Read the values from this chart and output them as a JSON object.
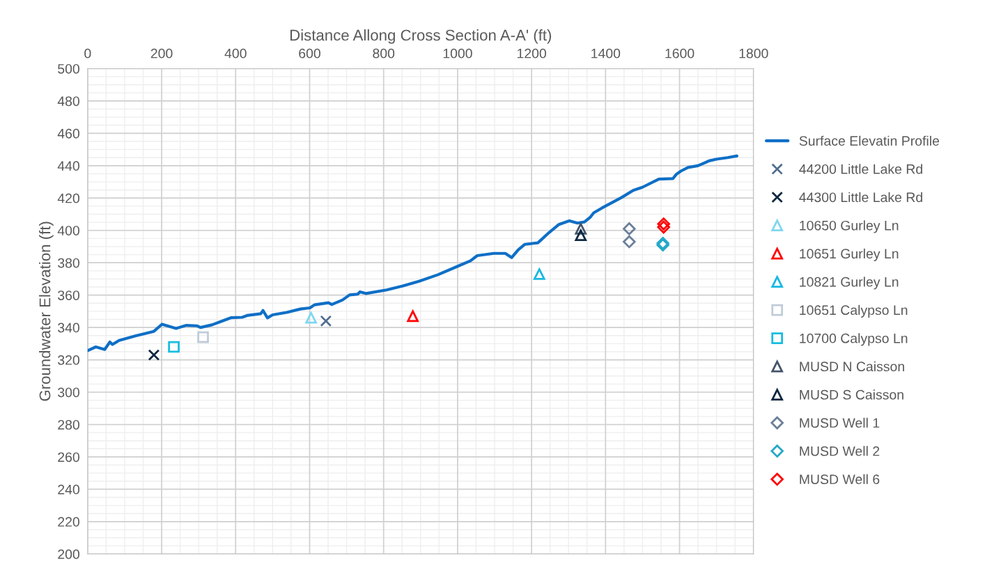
{
  "chart_data": {
    "type": "scatter",
    "xlabel": "Distance Allong Cross Section A-A' (ft)",
    "ylabel": "Groundwater Elevation (ft)",
    "xlim": [
      0,
      1800
    ],
    "xticks": [
      0,
      200,
      400,
      600,
      800,
      1000,
      1200,
      1400,
      1600,
      1800
    ],
    "ylim": [
      200,
      500
    ],
    "yticks": [
      200,
      220,
      240,
      260,
      280,
      300,
      320,
      340,
      360,
      380,
      400,
      420,
      440,
      460,
      480,
      500
    ],
    "grid": true,
    "legend": "right",
    "series": [
      {
        "name": "Surface Elevatin Profile",
        "type": "line",
        "color": "#0f6fc6",
        "marker": "none",
        "line_style": "solid",
        "x": [
          0,
          22,
          46,
          60,
          67,
          85,
          129,
          179,
          201,
          239,
          267,
          296,
          305,
          336,
          358,
          387,
          418,
          431,
          468,
          474,
          486,
          500,
          538,
          575,
          601,
          613,
          651,
          660,
          689,
          708,
          730,
          736,
          752,
          808,
          852,
          896,
          947,
          997,
          1035,
          1053,
          1098,
          1129,
          1146,
          1164,
          1182,
          1217,
          1248,
          1274,
          1302,
          1324,
          1343,
          1358,
          1368,
          1390,
          1443,
          1475,
          1500,
          1544,
          1582,
          1591,
          1604,
          1623,
          1650,
          1680,
          1700,
          1730,
          1755
        ],
        "values": [
          325.7,
          328,
          326.4,
          331,
          329.5,
          332,
          334.8,
          337.6,
          342,
          339.4,
          341.3,
          341,
          340,
          341.6,
          343.5,
          346,
          346.3,
          347.4,
          348.5,
          350.5,
          345.9,
          347.8,
          349.3,
          351.4,
          352.1,
          354,
          355.3,
          354.2,
          357,
          360.1,
          360.6,
          362,
          361,
          363.2,
          365.7,
          368.6,
          372.6,
          377.5,
          381.2,
          384.4,
          385.8,
          385.8,
          383.2,
          388,
          391.4,
          392.3,
          398.8,
          403.7,
          405.9,
          404.5,
          405.2,
          408,
          410.9,
          413.8,
          420.3,
          424.8,
          426.7,
          431.7,
          432,
          434.6,
          436.7,
          438.9,
          440,
          443,
          444,
          445,
          446
        ]
      },
      {
        "name": "44200 Little Lake Rd",
        "color": "#4e6e8e",
        "marker": "cross",
        "x": [
          644
        ],
        "values": [
          344
        ]
      },
      {
        "name": "44300 Little Lake Rd",
        "color": "#0e2841",
        "marker": "cross",
        "x": [
          179
        ],
        "values": [
          323
        ]
      },
      {
        "name": "10650 Gurley Ln",
        "color": "#7fd7ef",
        "marker": "triangle",
        "x": [
          604
        ],
        "values": [
          346
        ]
      },
      {
        "name": "10651 Gurley Ln",
        "color": "#ff0000",
        "marker": "triangle",
        "x": [
          879
        ],
        "values": [
          347
        ]
      },
      {
        "name": "10821 Gurley Ln",
        "color": "#17b8e0",
        "marker": "triangle",
        "x": [
          1221
        ],
        "values": [
          373
        ]
      },
      {
        "name": "10651 Calypso Ln",
        "color": "#c0ccd8",
        "marker": "square",
        "x": [
          312
        ],
        "values": [
          334
        ]
      },
      {
        "name": "10700 Calypso Ln",
        "color": "#17bde0",
        "marker": "square",
        "x": [
          233
        ],
        "values": [
          328
        ]
      },
      {
        "name": "MUSD N Caisson",
        "color": "#44546a",
        "marker": "triangle",
        "x": [
          1333
        ],
        "values": [
          401
        ]
      },
      {
        "name": "MUSD S Caisson",
        "color": "#0e2841",
        "marker": "triangle",
        "x": [
          1333
        ],
        "values": [
          397
        ]
      },
      {
        "name": "MUSD Well 1",
        "color": "#6a7f99",
        "marker": "diamond",
        "x": [
          1464,
          1464
        ],
        "values": [
          401,
          393
        ]
      },
      {
        "name": "MUSD Well 2",
        "color": "#25a8c8",
        "marker": "diamond",
        "x": [
          1555,
          1555
        ],
        "values": [
          392,
          391
        ]
      },
      {
        "name": "MUSD Well 6",
        "color": "#ff0000",
        "marker": "diamond",
        "x": [
          1557,
          1557
        ],
        "values": [
          404,
          402
        ]
      }
    ]
  }
}
